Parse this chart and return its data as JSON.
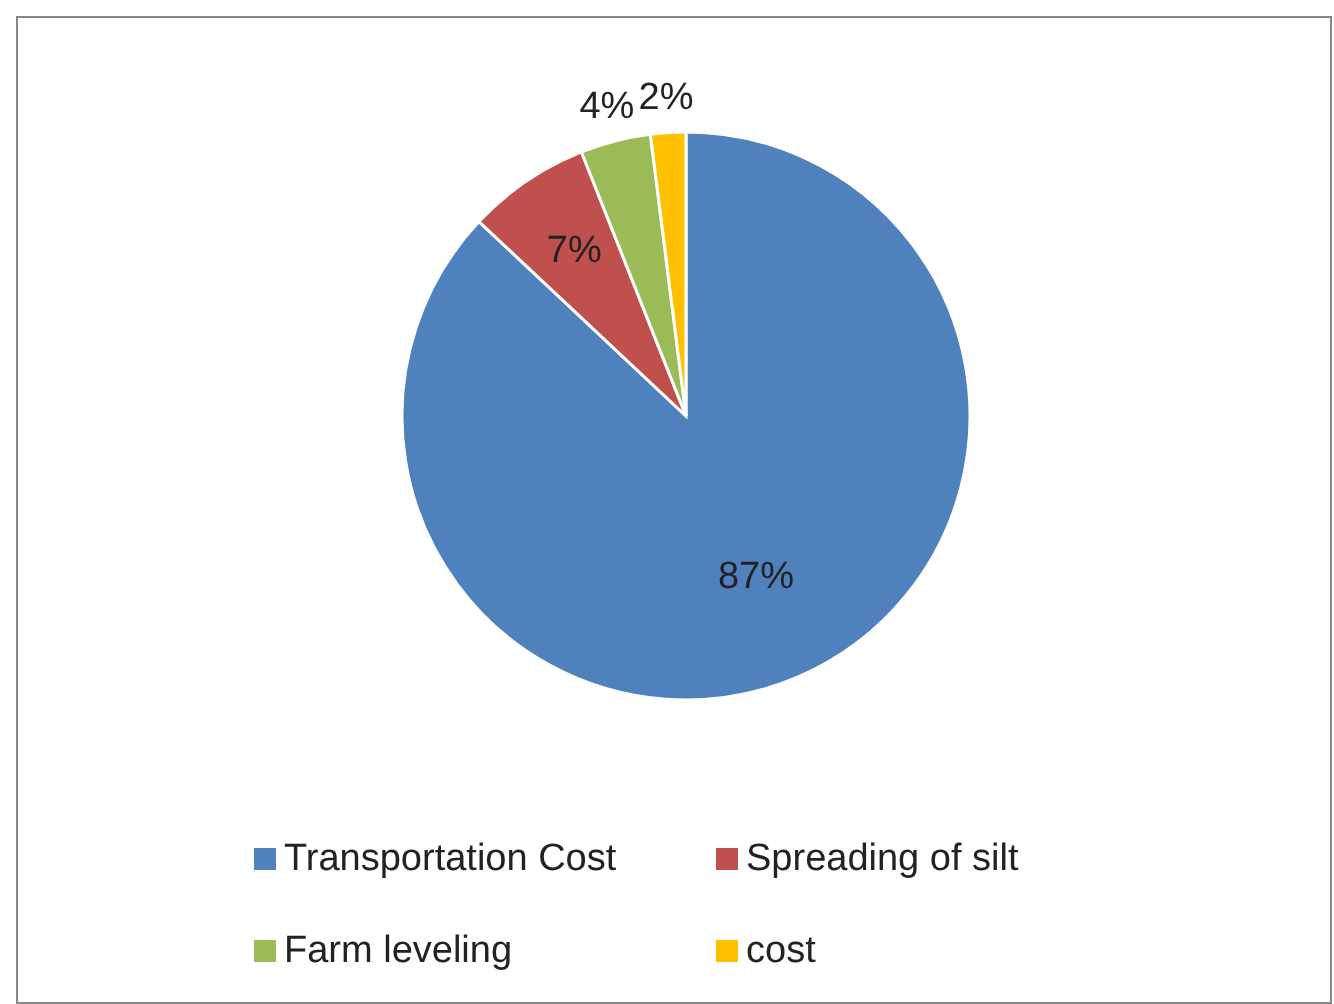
{
  "chart_data": {
    "type": "pie",
    "categories": [
      "Transportation Cost",
      "Spreading of silt",
      "Farm leveling",
      "cost"
    ],
    "values": [
      87,
      7,
      4,
      2
    ],
    "colors": [
      "#4f81bd",
      "#c0504d",
      "#9bbb59",
      "#ffc000"
    ],
    "value_labels": [
      "87%",
      "7%",
      "4%",
      "2%"
    ],
    "legend": "bottom"
  }
}
